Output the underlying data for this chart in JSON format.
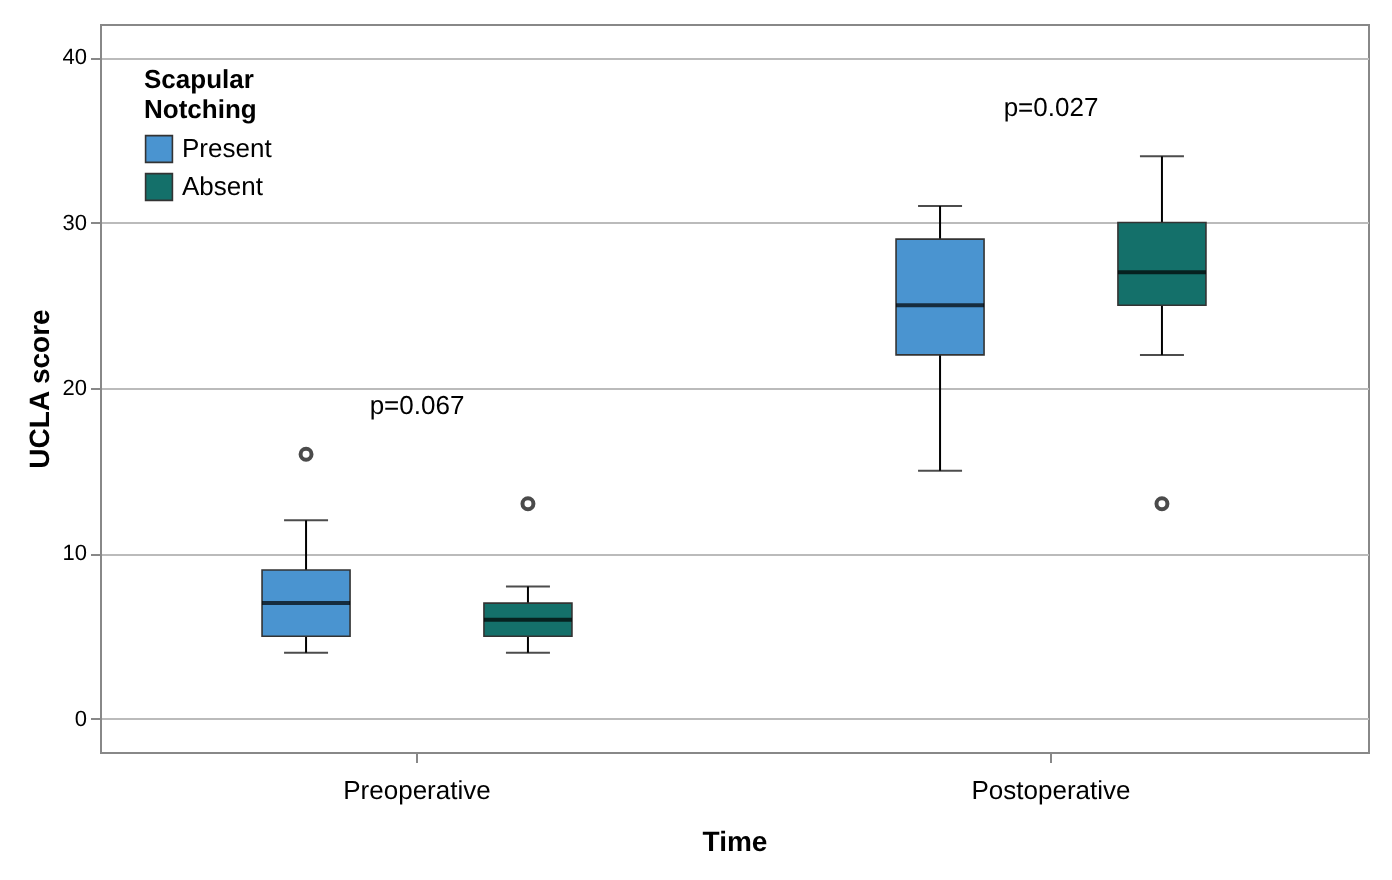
{
  "chart_data": {
    "type": "box",
    "xlabel": "Time",
    "ylabel": "UCLA score",
    "legend_title": "Scapular Notching",
    "categories": [
      "Preoperative",
      "Postoperative"
    ],
    "series": [
      {
        "name": "Present",
        "color": "#4a94d0",
        "boxes": [
          {
            "low": 4,
            "q1": 5,
            "median": 7,
            "q3": 9,
            "high": 12,
            "outliers": [
              16
            ]
          },
          {
            "low": 15,
            "q1": 22,
            "median": 25,
            "q3": 29,
            "high": 31
          }
        ]
      },
      {
        "name": "Absent",
        "color": "#14706a",
        "boxes": [
          {
            "low": 4,
            "q1": 5,
            "median": 6,
            "q3": 7,
            "high": 8,
            "outliers": [
              13
            ]
          },
          {
            "low": 22,
            "q1": 25,
            "median": 27,
            "q3": 30,
            "high": 34,
            "outliers": [
              13
            ]
          }
        ]
      }
    ],
    "ylim": [
      -2,
      42
    ],
    "yticks": [
      0,
      10,
      20,
      30,
      40
    ],
    "grid": "y",
    "legend": "top left",
    "annotations": [
      "p=0.067",
      "p=0.027"
    ]
  }
}
